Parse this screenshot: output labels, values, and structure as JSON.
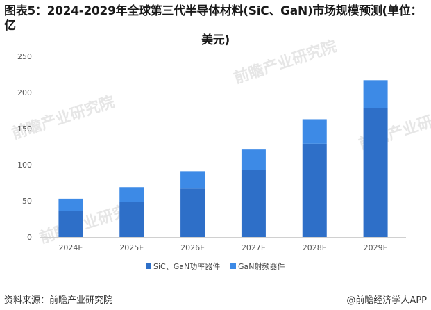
{
  "title_line1": "图表5：2024-2029年全球第三代半导体材料(SiC、GaN)市场规模预测(单位：亿",
  "title_line2": "美元)",
  "chart_data": {
    "type": "bar",
    "stacked": true,
    "categories": [
      "2024E",
      "2025E",
      "2026E",
      "2027E",
      "2028E",
      "2029E"
    ],
    "series": [
      {
        "name": "SiC、GaN功率器件",
        "values": [
          36,
          49,
          67,
          93,
          129,
          178
        ],
        "color": "#2e6fc8"
      },
      {
        "name": "GaN射频器件",
        "values": [
          17,
          20,
          24,
          28,
          34,
          39
        ],
        "color": "#3d8ae6"
      }
    ],
    "ylim": [
      0,
      250
    ],
    "yticks": [
      0,
      50,
      100,
      150,
      200,
      250
    ],
    "grid": false,
    "legend": "bottom-center"
  },
  "watermark": "前瞻产业研究院",
  "footer": {
    "source": "资料来源：前瞻产业研究院",
    "brand": "@前瞻经济学人APP"
  }
}
